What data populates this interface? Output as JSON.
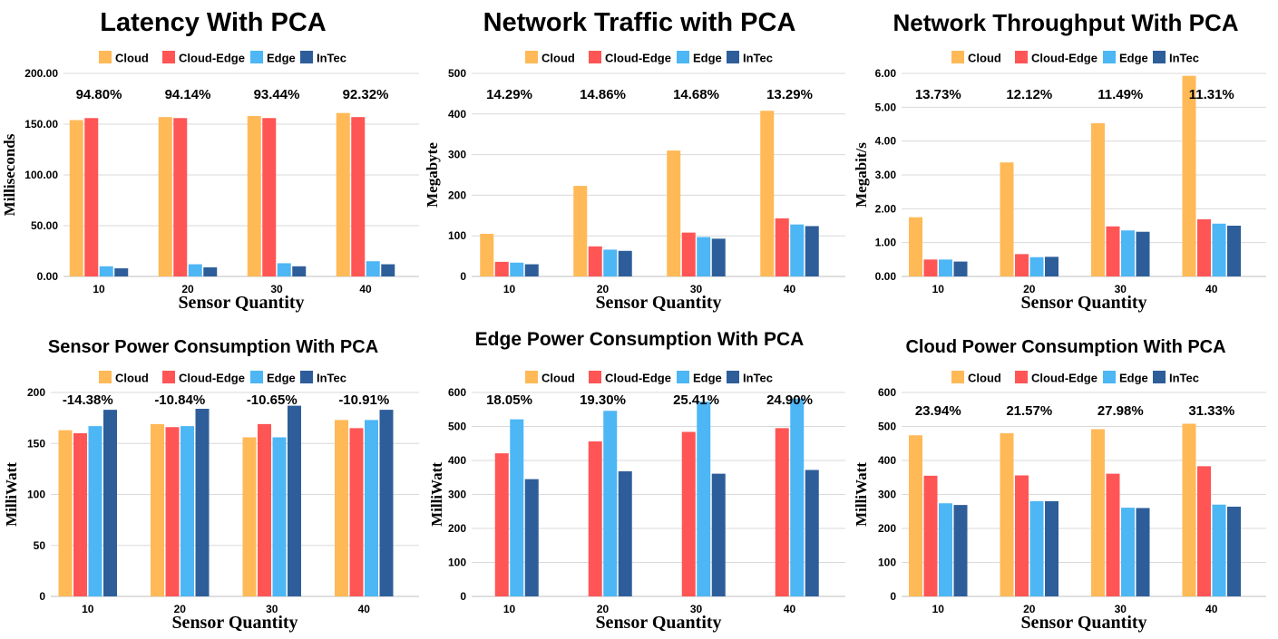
{
  "colors": {
    "Cloud": "#FFB957",
    "Cloud-Edge": "#FF5555",
    "Edge": "#4DB6F5",
    "InTec": "#2E5E9A"
  },
  "chart_data": [
    {
      "type": "bar",
      "title": "Latency With PCA",
      "xlabel": "Sensor Quantity",
      "ylabel": "Milliseconds",
      "categories": [
        "10",
        "20",
        "30",
        "40"
      ],
      "ylim": [
        0,
        200
      ],
      "yticks": [
        "0.00",
        "50.00",
        "100.00",
        "150.00",
        "200.00"
      ],
      "series": [
        {
          "name": "Cloud",
          "values": [
            154,
            157,
            158,
            161
          ]
        },
        {
          "name": "Cloud-Edge",
          "values": [
            156,
            156,
            156,
            157
          ]
        },
        {
          "name": "Edge",
          "values": [
            10,
            12,
            13,
            15
          ]
        },
        {
          "name": "InTec",
          "values": [
            8,
            9,
            10,
            12
          ]
        }
      ],
      "annotations": [
        "94.80%",
        "94.14%",
        "93.44%",
        "92.32%"
      ]
    },
    {
      "type": "bar",
      "title": "Network Traffic with PCA",
      "xlabel": "Sensor Quantity",
      "ylabel": "Megabyte",
      "categories": [
        "10",
        "20",
        "30",
        "40"
      ],
      "ylim": [
        0,
        500
      ],
      "yticks": [
        "0",
        "100",
        "200",
        "300",
        "400",
        "500"
      ],
      "series": [
        {
          "name": "Cloud",
          "values": [
            105,
            223,
            310,
            408
          ]
        },
        {
          "name": "Cloud-Edge",
          "values": [
            36,
            74,
            108,
            143
          ]
        },
        {
          "name": "Edge",
          "values": [
            34,
            66,
            97,
            128
          ]
        },
        {
          "name": "InTec",
          "values": [
            30,
            63,
            93,
            124
          ]
        }
      ],
      "annotations": [
        "14.29%",
        "14.86%",
        "14.68%",
        "13.29%"
      ]
    },
    {
      "type": "bar",
      "title": "Network Throughput With PCA",
      "xlabel": "Sensor Quantity",
      "ylabel": "Megabit/s",
      "categories": [
        "10",
        "20",
        "30",
        "40"
      ],
      "ylim": [
        0,
        6
      ],
      "yticks": [
        "0.00",
        "1.00",
        "2.00",
        "3.00",
        "4.00",
        "5.00",
        "6.00"
      ],
      "series": [
        {
          "name": "Cloud",
          "values": [
            1.75,
            3.37,
            4.53,
            5.93
          ]
        },
        {
          "name": "Cloud-Edge",
          "values": [
            0.5,
            0.66,
            1.48,
            1.69
          ]
        },
        {
          "name": "Edge",
          "values": [
            0.5,
            0.57,
            1.36,
            1.56
          ]
        },
        {
          "name": "InTec",
          "values": [
            0.44,
            0.58,
            1.32,
            1.5
          ]
        }
      ],
      "annotations": [
        "13.73%",
        "12.12%",
        "11.49%",
        "11.31%"
      ]
    },
    {
      "type": "bar",
      "title": "Sensor Power Consumption With PCA",
      "xlabel": "Sensor Quantity",
      "ylabel": "MilliWatt",
      "categories": [
        "10",
        "20",
        "30",
        "40"
      ],
      "ylim": [
        0,
        200
      ],
      "yticks": [
        "0",
        "50",
        "100",
        "150",
        "200"
      ],
      "series": [
        {
          "name": "Cloud",
          "values": [
            163,
            169,
            156,
            173
          ]
        },
        {
          "name": "Cloud-Edge",
          "values": [
            160,
            166,
            169,
            165
          ]
        },
        {
          "name": "Edge",
          "values": [
            167,
            167,
            156,
            173
          ]
        },
        {
          "name": "InTec",
          "values": [
            183,
            184,
            187,
            183
          ]
        }
      ],
      "annotations": [
        "-14.38%",
        "-10.84%",
        "-10.65%",
        "-10.91%"
      ]
    },
    {
      "type": "bar",
      "title": "Edge Power Consumption With PCA",
      "xlabel": "Sensor Quantity",
      "ylabel": "MilliWatt",
      "categories": [
        "10",
        "20",
        "30",
        "40"
      ],
      "ylim": [
        0,
        600
      ],
      "yticks": [
        "0",
        "100",
        "200",
        "300",
        "400",
        "500",
        "600"
      ],
      "series": [
        {
          "name": "Cloud",
          "values": [
            0,
            0,
            0,
            0
          ]
        },
        {
          "name": "Cloud-Edge",
          "values": [
            421,
            456,
            484,
            495
          ]
        },
        {
          "name": "Edge",
          "values": [
            521,
            546,
            573,
            582
          ]
        },
        {
          "name": "InTec",
          "values": [
            345,
            368,
            361,
            372
          ]
        }
      ],
      "annotations": [
        "18.05%",
        "19.30%",
        "25.41%",
        "24.90%"
      ]
    },
    {
      "type": "bar",
      "title": "Cloud Power Consumption With PCA",
      "xlabel": "Sensor Quantity",
      "ylabel": "MilliWatt",
      "categories": [
        "10",
        "20",
        "30",
        "40"
      ],
      "ylim": [
        0,
        600
      ],
      "yticks": [
        "0",
        "100",
        "200",
        "300",
        "400",
        "500",
        "600"
      ],
      "series": [
        {
          "name": "Cloud",
          "values": [
            474,
            480,
            492,
            508
          ]
        },
        {
          "name": "Cloud-Edge",
          "values": [
            355,
            356,
            361,
            383
          ]
        },
        {
          "name": "Edge",
          "values": [
            274,
            280,
            261,
            270
          ]
        },
        {
          "name": "InTec",
          "values": [
            269,
            280,
            260,
            264
          ]
        }
      ],
      "annotations": [
        "23.94%",
        "21.57%",
        "27.98%",
        "31.33%"
      ]
    }
  ]
}
